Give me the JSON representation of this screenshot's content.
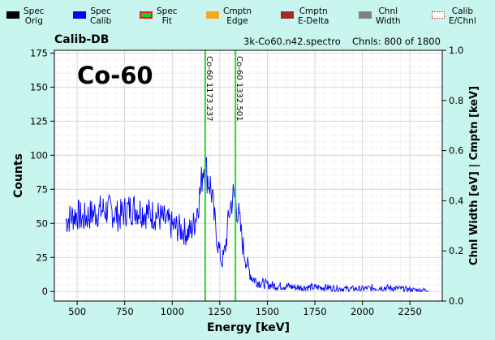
{
  "legend": [
    {
      "line1": "Spec",
      "line2": "Orig",
      "color": "#000000",
      "style": "solid"
    },
    {
      "line1": "Spec",
      "line2": "Calib",
      "color": "#0000ff",
      "style": "solid"
    },
    {
      "line1": "Spec",
      "line2": "Fit",
      "color": "#22cc22",
      "style": "fit"
    },
    {
      "line1": "Cmptn",
      "line2": "Edge",
      "color": "#f5a623",
      "style": "solid"
    },
    {
      "line1": "Cmptn",
      "line2": "E-Delta",
      "color": "#a52a2a",
      "style": "solid"
    },
    {
      "line1": "Chnl",
      "line2": "Width",
      "color": "#808080",
      "style": "solid"
    },
    {
      "line1": "Calib",
      "line2": "E/Chnl",
      "color": "#ffffff",
      "style": "dotted"
    }
  ],
  "header": {
    "title": "Calib-DB",
    "file": "3k-Co60.n42.spectro",
    "channels": "Chnls: 800 of 1800"
  },
  "chart_data": {
    "type": "line",
    "annotation": "Co-60",
    "xlabel": "Energy [keV]",
    "ylabel": "Counts",
    "y2label": "Chnl Width [eV] | Cmptn [keV]",
    "xlim": [
      380,
      2420
    ],
    "ylim": [
      -7,
      177
    ],
    "y2lim": [
      0,
      1.0
    ],
    "xticks": [
      500,
      750,
      1000,
      1250,
      1500,
      1750,
      2000,
      2250
    ],
    "yticks": [
      0,
      25,
      50,
      75,
      100,
      125,
      150,
      175
    ],
    "y2ticks": [
      0.0,
      0.2,
      0.4,
      0.6,
      0.8,
      1.0
    ],
    "grid": true,
    "markers": [
      {
        "x": 1173.237,
        "label": "Co-60  1173.237",
        "color": "#22dd22"
      },
      {
        "x": 1332.501,
        "label": "Co-60  1332.501",
        "color": "#22dd22"
      }
    ],
    "series": [
      {
        "color": "#0000ff",
        "x": [
          440,
          470,
          500,
          530,
          560,
          600,
          640,
          680,
          720,
          760,
          800,
          840,
          880,
          920,
          960,
          1000,
          1040,
          1080,
          1100,
          1120,
          1140,
          1150,
          1160,
          1170,
          1180,
          1190,
          1200,
          1210,
          1220,
          1230,
          1240,
          1250,
          1260,
          1270,
          1280,
          1290,
          1300,
          1310,
          1320,
          1330,
          1340,
          1350,
          1360,
          1370,
          1380,
          1390,
          1400,
          1420,
          1450,
          1500,
          1550,
          1600,
          1650,
          1700,
          1800,
          1900,
          2000,
          2100,
          2200,
          2300,
          2350
        ],
        "y": [
          52,
          55,
          57,
          53,
          56,
          58,
          60,
          59,
          55,
          60,
          61,
          59,
          57,
          56,
          52,
          48,
          46,
          43,
          45,
          52,
          68,
          75,
          90,
          95,
          88,
          82,
          78,
          70,
          55,
          45,
          35,
          28,
          22,
          25,
          33,
          45,
          58,
          65,
          70,
          68,
          62,
          55,
          45,
          35,
          28,
          22,
          17,
          10,
          7,
          5,
          4,
          4,
          3,
          3,
          3,
          2,
          2,
          3,
          2,
          1,
          1
        ]
      }
    ]
  }
}
